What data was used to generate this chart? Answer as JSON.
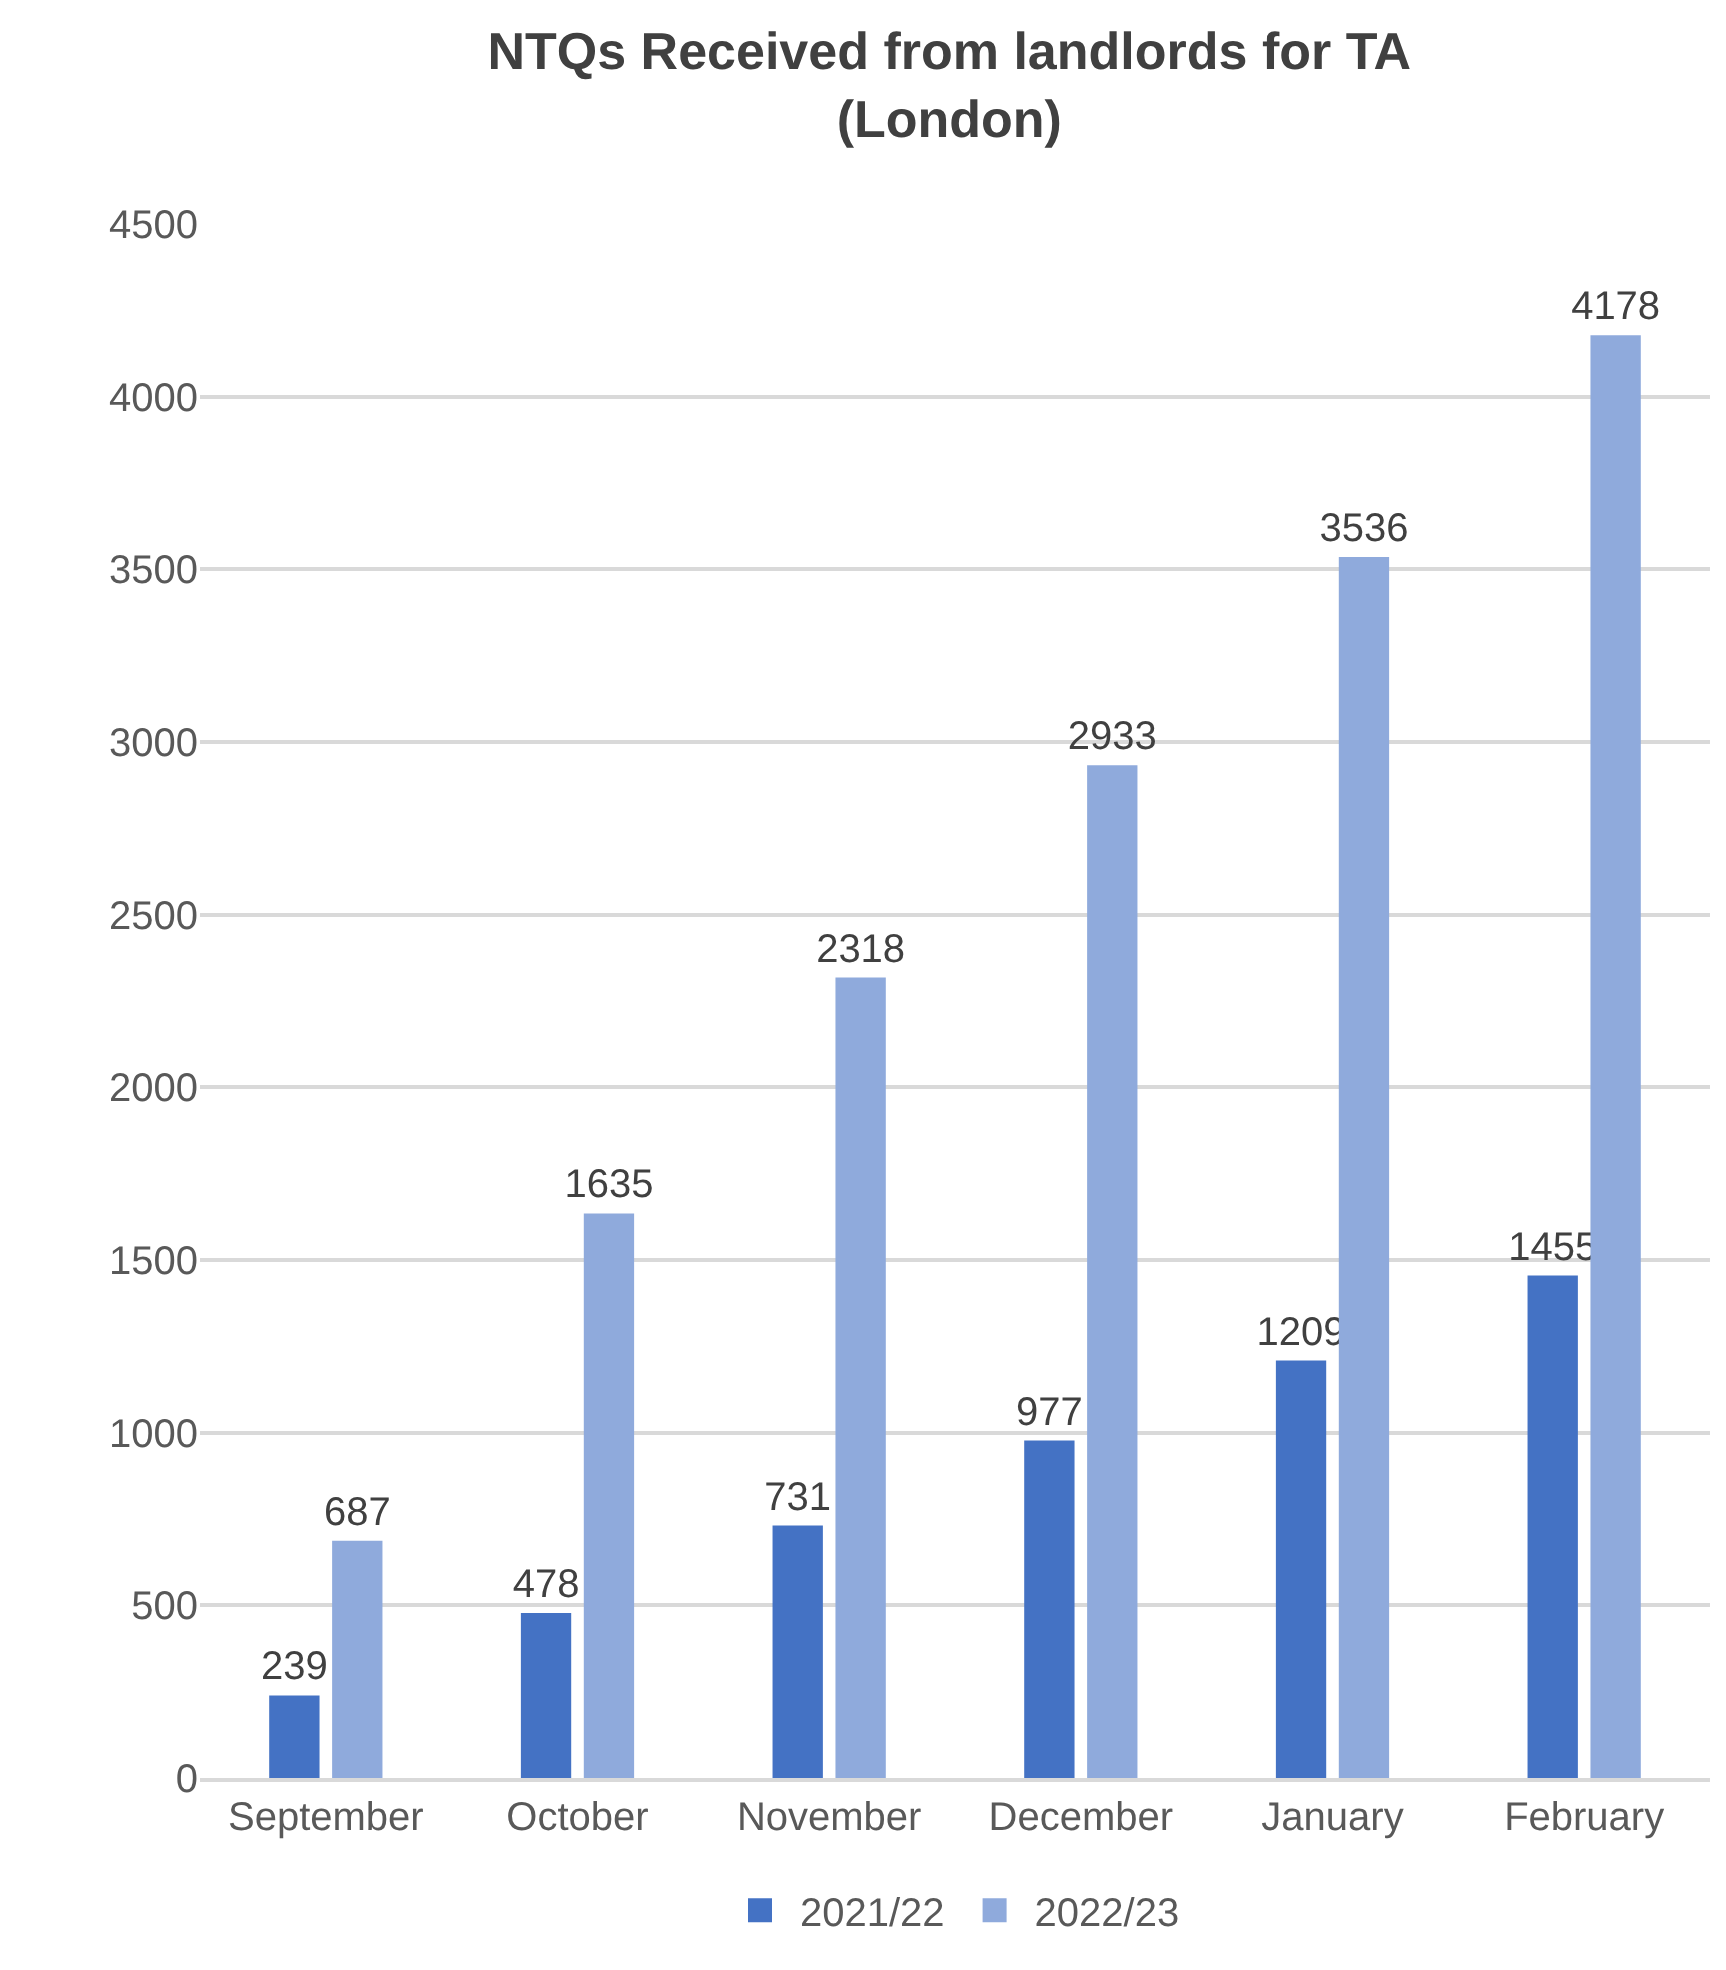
{
  "chart_data": {
    "type": "bar",
    "title": "NTQs Received from landlords for TA\n(London)",
    "categories": [
      "September",
      "October",
      "November",
      "December",
      "January",
      "February"
    ],
    "series": [
      {
        "name": "2021/22",
        "color": "#4472c4",
        "values": [
          239,
          478,
          731,
          977,
          1209,
          1455
        ]
      },
      {
        "name": "2022/23",
        "color": "#8faadc",
        "values": [
          687,
          1635,
          2318,
          2933,
          3536,
          4178
        ]
      }
    ],
    "ylim": [
      0,
      4500
    ],
    "yticks": [
      0,
      500,
      1000,
      1500,
      2000,
      2500,
      3000,
      3500,
      4000,
      4500
    ],
    "grid": "y",
    "legend": "bottom",
    "data_labels": true
  }
}
